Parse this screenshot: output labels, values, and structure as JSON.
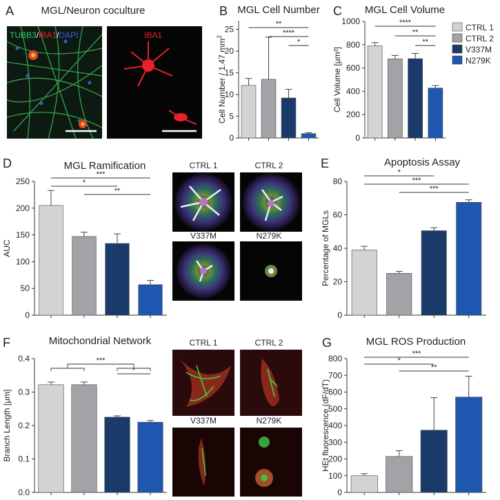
{
  "figure": {
    "colors": {
      "ctrl1": "#d2d3d3",
      "ctrl2": "#a2a3a7",
      "v337m": "#1a3a6a",
      "n279k": "#1f57b0",
      "tubb3": "#33cc66",
      "iba1": "#e8202a",
      "dapi": "#3a5ad8"
    },
    "panel_A": {
      "letter": "A",
      "title": "MGL/Neuron coculture",
      "label_tubb3": "TUBB3",
      "label_sep1": "/",
      "label_iba1": "IBA1",
      "label_sep2": "/",
      "label_dapi": "DAPI",
      "label_right": "IBA1"
    },
    "panel_D_images": [
      "CTRL 1",
      "CTRL 2",
      "V337M",
      "N279K"
    ],
    "panel_F_images": [
      "CTRL 1",
      "CTRL 2",
      "V337M",
      "N279K"
    ]
  },
  "chart_data": [
    {
      "id": "B",
      "letter": "B",
      "type": "bar",
      "title": "MGL Cell Number",
      "ylabel": "Cell  Number / 1.47 mm",
      "ylabel_sup": "2",
      "categories": [
        "CTRL 1",
        "CTRL 2",
        "V337M",
        "N279K"
      ],
      "values": [
        12.1,
        13.5,
        9.2,
        1.0
      ],
      "errors": [
        1.6,
        9.7,
        2.0,
        0.2
      ],
      "ylim": [
        0,
        27
      ],
      "yticks": [
        0,
        5,
        10,
        15,
        20,
        25
      ],
      "ytick_labels": [
        "0",
        "5",
        "10",
        "15",
        "20",
        "25"
      ],
      "sig": [
        {
          "from": 0,
          "to": 3,
          "label": "**"
        },
        {
          "from": 1,
          "to": 3,
          "label": "****"
        },
        {
          "from": 2,
          "to": 3,
          "label": "*"
        }
      ]
    },
    {
      "id": "C",
      "letter": "C",
      "type": "bar",
      "title": "MGL Cell Volume",
      "ylabel": "Cell Volume [µm³]",
      "categories": [
        "CTRL 1",
        "CTRL 2",
        "V337M",
        "N279K"
      ],
      "values": [
        790,
        678,
        680,
        428
      ],
      "errors": [
        28,
        30,
        45,
        22
      ],
      "ylim": [
        0,
        1000
      ],
      "yticks": [
        0,
        200,
        400,
        600,
        800,
        1000
      ],
      "ytick_labels": [
        "0",
        "200",
        "400",
        "600",
        "800",
        "1000"
      ],
      "legend": [
        "CTRL 1",
        "CTRL 2",
        "V337M",
        "N279K"
      ],
      "sig": [
        {
          "from": 0,
          "to": 3,
          "label": "****"
        },
        {
          "from": 1,
          "to": 3,
          "label": "**"
        },
        {
          "from": 2,
          "to": 3,
          "label": "**"
        }
      ]
    },
    {
      "id": "D",
      "letter": "D",
      "type": "bar",
      "title": "MGL Ramification",
      "ylabel": "AUC",
      "categories": [
        "CTRL 1",
        "CTRL 2",
        "V337M",
        "N279K"
      ],
      "values": [
        205,
        147,
        134,
        57
      ],
      "errors": [
        28,
        8,
        18,
        8
      ],
      "ylim": [
        0,
        250
      ],
      "yticks": [
        0,
        50,
        100,
        150,
        200,
        250
      ],
      "ytick_labels": [
        "0",
        "50",
        "100",
        "150",
        "200",
        "250"
      ],
      "sig": [
        {
          "from": 0,
          "to": 3,
          "label": "***"
        },
        {
          "from": 0,
          "to": 2,
          "label": "*"
        },
        {
          "from": 1,
          "to": 3,
          "label": "**"
        }
      ]
    },
    {
      "id": "E",
      "letter": "E",
      "type": "bar",
      "title": "Apoptosis Assay",
      "ylabel": "Percentage of MGLs",
      "categories": [
        "CTRL 1",
        "CTRL 2",
        "V337M",
        "N279K"
      ],
      "values": [
        39,
        25,
        50.5,
        67.5
      ],
      "errors": [
        2.2,
        1.2,
        1.8,
        1.5
      ],
      "ylim": [
        0,
        80
      ],
      "yticks": [
        0,
        20,
        40,
        60,
        80
      ],
      "ytick_labels": [
        "0",
        "20",
        "40",
        "60",
        "80"
      ],
      "sig": [
        {
          "from": 0,
          "to": 2,
          "label": "*"
        },
        {
          "from": 0,
          "to": 3,
          "label": "***"
        },
        {
          "from": 1,
          "to": 3,
          "label": "***"
        }
      ]
    },
    {
      "id": "F",
      "letter": "F",
      "type": "bar",
      "title": "Mitochondrial Network",
      "ylabel": "Branch Length [µm]",
      "categories": [
        "CTRL 1",
        "CTRL 2",
        "V337M",
        "N279K"
      ],
      "values": [
        0.322,
        0.322,
        0.225,
        0.21
      ],
      "errors": [
        0.008,
        0.008,
        0.004,
        0.005
      ],
      "ylim": [
        0,
        0.4
      ],
      "yticks": [
        0,
        0.1,
        0.2,
        0.3,
        0.4
      ],
      "ytick_labels": [
        "0.0",
        "0.1",
        "0.2",
        "0.3",
        "0.4"
      ],
      "sig": [
        {
          "from": [
            0,
            1
          ],
          "to": [
            2,
            3
          ],
          "label": "***"
        },
        {
          "from": 2,
          "to": 3,
          "label": "*"
        }
      ]
    },
    {
      "id": "G",
      "letter": "G",
      "type": "bar",
      "title": "MGL ROS Production",
      "ylabel": "HEt fluorescence (dF/dT)",
      "categories": [
        "CTRL 1",
        "CTRL 2",
        "V337M",
        "N279K"
      ],
      "values": [
        100,
        215,
        372,
        570
      ],
      "errors": [
        12,
        35,
        195,
        125
      ],
      "ylim": [
        0,
        800
      ],
      "yticks": [
        0,
        100,
        200,
        300,
        400,
        500,
        600,
        700,
        800
      ],
      "ytick_labels": [
        "0",
        "100",
        "200",
        "300",
        "400",
        "500",
        "600",
        "700",
        "800"
      ],
      "sig": [
        {
          "from": 0,
          "to": 3,
          "label": "***"
        },
        {
          "from": 0,
          "to": 2,
          "label": "*"
        },
        {
          "from": 1,
          "to": 3,
          "label": "**"
        }
      ]
    }
  ]
}
